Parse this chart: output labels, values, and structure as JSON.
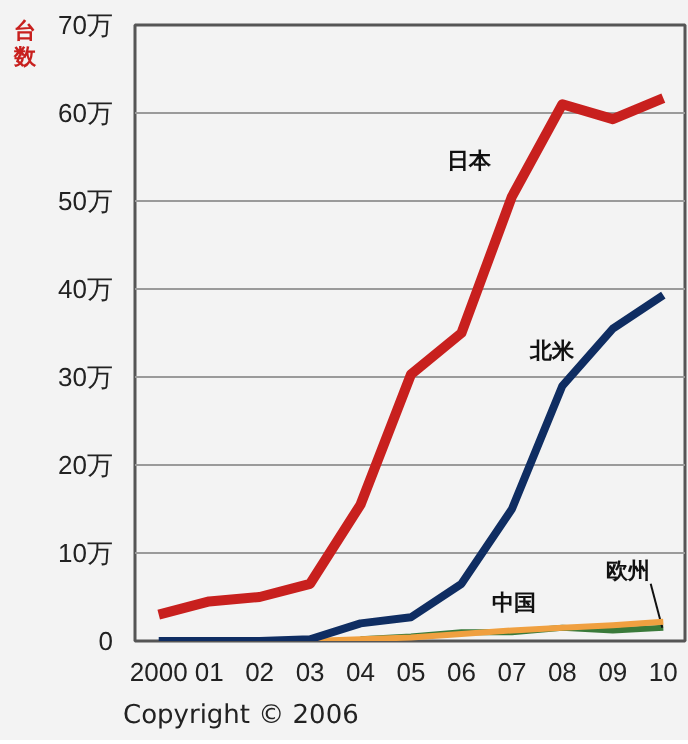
{
  "chart_data": {
    "type": "line",
    "ylabel": "台数",
    "x": [
      2000,
      2001,
      2002,
      2003,
      2004,
      2005,
      2006,
      2007,
      2008,
      2009,
      2010
    ],
    "series": [
      {
        "name": "日本",
        "color": "#c8201e",
        "values": [
          3,
          4.5,
          5,
          6.5,
          15.5,
          30.3,
          35,
          50.5,
          61,
          59.3,
          61.7
        ]
      },
      {
        "name": "北米",
        "color": "#0f2d62",
        "values": [
          0,
          0,
          0,
          0.2,
          2,
          2.7,
          6.5,
          15,
          29,
          35.5,
          39.3
        ]
      },
      {
        "name": "中国",
        "color": "#f0a040",
        "values": [
          null,
          null,
          null,
          0,
          0.2,
          0.4,
          0.8,
          1.2,
          1.5,
          1.8,
          2.2
        ]
      },
      {
        "name": "欧州",
        "color": "#3a7a3a",
        "values": [
          null,
          null,
          null,
          null,
          0.2,
          0.5,
          1,
          1,
          1.5,
          1.2,
          1.5
        ]
      }
    ],
    "xlim": [
      1999.53,
      2010.43
    ],
    "xticks": [
      {
        "value": 2000,
        "label": "2000"
      },
      {
        "value": 2001,
        "label": "01"
      },
      {
        "value": 2002,
        "label": "02"
      },
      {
        "value": 2003,
        "label": "03"
      },
      {
        "value": 2004,
        "label": "04"
      },
      {
        "value": 2005,
        "label": "05"
      },
      {
        "value": 2006,
        "label": "06"
      },
      {
        "value": 2007,
        "label": "07"
      },
      {
        "value": 2008,
        "label": "08"
      },
      {
        "value": 2009,
        "label": "09"
      },
      {
        "value": 2010,
        "label": "10"
      }
    ],
    "ylim": [
      0,
      70
    ],
    "yticks": [
      0,
      {
        "value": 10,
        "label": "10万"
      },
      {
        "value": 20,
        "label": "20万"
      },
      {
        "value": 30,
        "label": "30万"
      },
      {
        "value": 40,
        "label": "40万"
      },
      {
        "value": 50,
        "label": "50万"
      },
      {
        "value": 60,
        "label": "60万"
      },
      {
        "value": 70,
        "label": "70万"
      }
    ],
    "grid": "y",
    "legend": false,
    "marker": "none",
    "line_style": "solid",
    "annotations": [
      "Copyright © 2006"
    ]
  }
}
